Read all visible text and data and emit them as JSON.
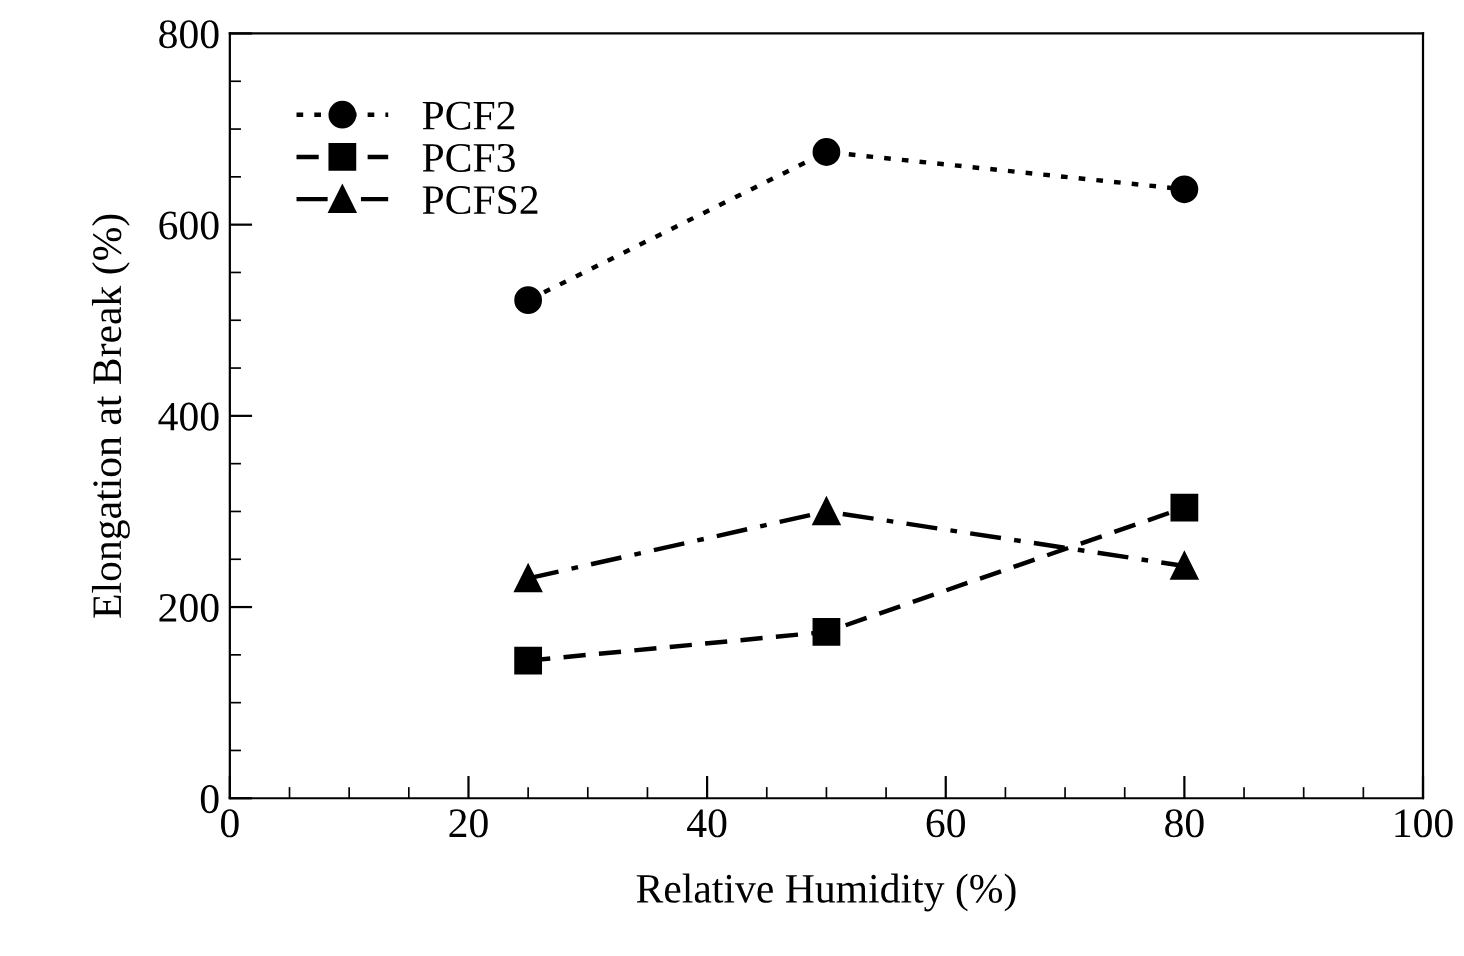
{
  "chart_data": {
    "type": "line",
    "xlabel": "Relative Humidity (%)",
    "ylabel": "Elongation at Break (%)",
    "x": [
      25,
      50,
      80
    ],
    "series": [
      {
        "name": "PCF2",
        "color": "#000000",
        "marker": "circle",
        "line_style": "dotted",
        "values": [
          521,
          676,
          637
        ]
      },
      {
        "name": "PCF3",
        "color": "#000000",
        "marker": "square",
        "line_style": "dashed",
        "values": [
          144,
          174,
          304
        ]
      },
      {
        "name": "PCFS2",
        "color": "#000000",
        "marker": "triangle",
        "line_style": "dashdot",
        "values": [
          230,
          300,
          243
        ]
      }
    ],
    "xlim": [
      0,
      100
    ],
    "xticks": [
      0,
      20,
      40,
      60,
      80,
      100
    ],
    "ylim": [
      0,
      800
    ],
    "yticks": [
      0,
      200,
      400,
      600,
      800
    ],
    "grid": false,
    "legend": "top left"
  }
}
